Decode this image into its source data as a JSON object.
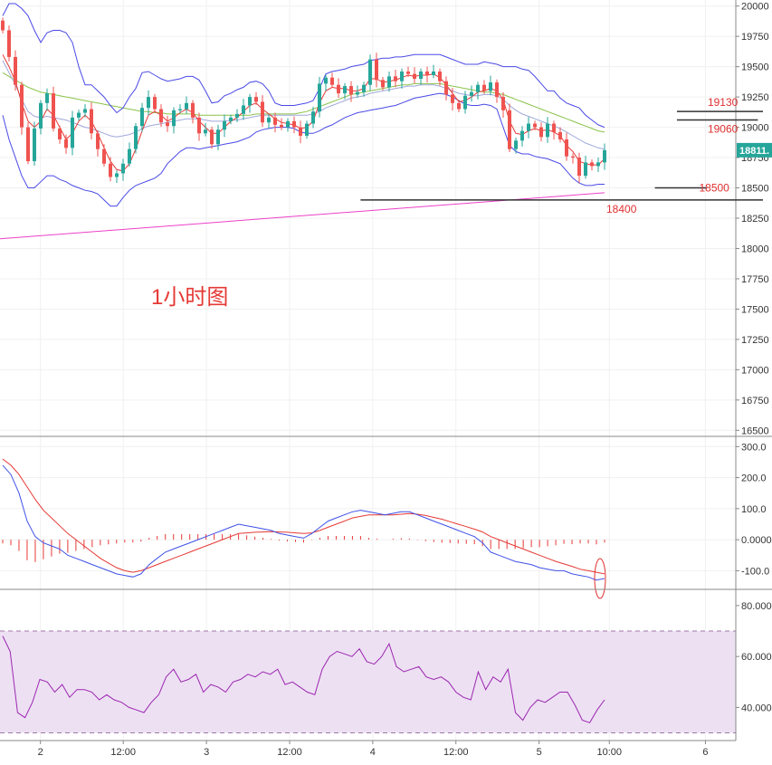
{
  "chart_data": {
    "type": "candlestick",
    "title": "1小时图",
    "price_panel": {
      "ylim": [
        16450,
        20050
      ],
      "yticks": [
        16500,
        16750,
        17000,
        17250,
        17500,
        17750,
        18000,
        18250,
        18500,
        18750,
        19000,
        19250,
        19500,
        19750,
        20000
      ],
      "ytick_labels": [
        "16500",
        "16750",
        "17000",
        "17250",
        "17500",
        "17750",
        "18000",
        "18250",
        "18500",
        "18750",
        "19000",
        "19250",
        "19500",
        "19750",
        "20000"
      ],
      "last_price_label": "18811.",
      "last_price": 18811,
      "levels": [
        {
          "label": "19130",
          "value": 19130,
          "x_from": 0.92,
          "x_to": 1.06
        },
        {
          "label": "19060",
          "value": 19060,
          "x_from": 0.92,
          "x_to": 1.03
        },
        {
          "label": "18500",
          "value": 18500,
          "x_from": 0.89,
          "x_to": 0.96
        },
        {
          "label": "18400",
          "value": 18400,
          "x_from": 0.49,
          "x_to": 1.1
        }
      ],
      "close": [
        19800,
        19580,
        19350,
        19000,
        18720,
        18990,
        19200,
        19280,
        18990,
        18900,
        18830,
        19080,
        19120,
        19150,
        18950,
        18820,
        18700,
        18590,
        18620,
        18700,
        18820,
        19010,
        19160,
        19250,
        19150,
        19040,
        19010,
        19140,
        19150,
        19200,
        19080,
        18950,
        18980,
        18860,
        18980,
        19050,
        19080,
        19110,
        19180,
        19250,
        19210,
        19040,
        19080,
        19020,
        19000,
        19050,
        19000,
        18930,
        19030,
        19130,
        19360,
        19410,
        19350,
        19280,
        19340,
        19270,
        19290,
        19350,
        19560,
        19390,
        19330,
        19420,
        19380,
        19460,
        19440,
        19400,
        19460,
        19430,
        19460,
        19380,
        19270,
        19200,
        19150,
        19260,
        19290,
        19350,
        19300,
        19370,
        19250,
        19140,
        18820,
        18890,
        18970,
        19030,
        19000,
        18920,
        19030,
        18960,
        18900,
        18760,
        18750,
        18600,
        18710,
        18680,
        18710,
        18811
      ],
      "ma_red": [
        19600,
        19500,
        19380,
        19200,
        19050,
        19000,
        19050,
        19150,
        19100,
        19000,
        18900,
        18950,
        19050,
        19100,
        19050,
        18950,
        18830,
        18720,
        18650,
        18640,
        18700,
        18820,
        18970,
        19100,
        19130,
        19100,
        19050,
        19080,
        19120,
        19150,
        19120,
        19050,
        19000,
        18950,
        18950,
        19000,
        19050,
        19080,
        19130,
        19180,
        19200,
        19150,
        19110,
        19070,
        19040,
        19030,
        19020,
        18990,
        19000,
        19050,
        19200,
        19300,
        19330,
        19320,
        19320,
        19300,
        19300,
        19320,
        19400,
        19400,
        19370,
        19380,
        19390,
        19410,
        19430,
        19420,
        19430,
        19430,
        19440,
        19410,
        19350,
        19280,
        19210,
        19220,
        19250,
        19290,
        19300,
        19320,
        19300,
        19230,
        19050,
        18950,
        18940,
        18970,
        18990,
        18970,
        18980,
        18960,
        18930,
        18850,
        18800,
        18720,
        18700,
        18690,
        18690,
        18740
      ],
      "bb_upper": [
        19920,
        20020,
        20020,
        19980,
        19920,
        19800,
        19700,
        19780,
        19800,
        19800,
        19780,
        19700,
        19500,
        19350,
        19350,
        19300,
        19250,
        19180,
        19120,
        19160,
        19250,
        19320,
        19450,
        19460,
        19430,
        19400,
        19380,
        19390,
        19400,
        19420,
        19420,
        19390,
        19300,
        19200,
        19210,
        19260,
        19280,
        19310,
        19330,
        19370,
        19380,
        19360,
        19300,
        19200,
        19180,
        19180,
        19180,
        19190,
        19200,
        19220,
        19320,
        19440,
        19460,
        19470,
        19480,
        19500,
        19510,
        19520,
        19550,
        19560,
        19570,
        19570,
        19580,
        19580,
        19590,
        19600,
        19600,
        19600,
        19600,
        19600,
        19580,
        19560,
        19540,
        19520,
        19520,
        19520,
        19540,
        19530,
        19520,
        19500,
        19500,
        19500,
        19480,
        19470,
        19420,
        19360,
        19300,
        19300,
        19240,
        19200,
        19180,
        19160,
        19100,
        19060,
        19020,
        19000
      ],
      "bb_lower": [
        19100,
        18900,
        18750,
        18600,
        18500,
        18500,
        18550,
        18600,
        18600,
        18570,
        18550,
        18520,
        18500,
        18480,
        18470,
        18450,
        18400,
        18350,
        18350,
        18420,
        18480,
        18520,
        18540,
        18560,
        18580,
        18620,
        18700,
        18750,
        18800,
        18830,
        18830,
        18820,
        18830,
        18840,
        18850,
        18860,
        18870,
        18880,
        18900,
        18920,
        18960,
        18980,
        18990,
        19000,
        19000,
        19000,
        18990,
        18960,
        18950,
        18950,
        18970,
        19000,
        19020,
        19050,
        19080,
        19100,
        19120,
        19130,
        19140,
        19150,
        19160,
        19170,
        19180,
        19200,
        19220,
        19240,
        19250,
        19260,
        19270,
        19280,
        19270,
        19250,
        19220,
        19190,
        19180,
        19180,
        19190,
        19180,
        19150,
        19000,
        18850,
        18800,
        18780,
        18780,
        18760,
        18750,
        18740,
        18720,
        18700,
        18640,
        18580,
        18540,
        18520,
        18520,
        18530,
        18530
      ],
      "bb_mid": [
        19550,
        19450,
        19350,
        19230,
        19130,
        19090,
        19080,
        19090,
        19080,
        19070,
        19060,
        19040,
        19020,
        19000,
        18990,
        18970,
        18950,
        18930,
        18920,
        18930,
        18940,
        18960,
        18990,
        19010,
        19020,
        19030,
        19040,
        19050,
        19060,
        19070,
        19070,
        19070,
        19060,
        19050,
        19050,
        19050,
        19060,
        19060,
        19070,
        19080,
        19090,
        19100,
        19100,
        19100,
        19100,
        19100,
        19100,
        19100,
        19100,
        19110,
        19130,
        19160,
        19180,
        19200,
        19220,
        19240,
        19250,
        19260,
        19280,
        19290,
        19300,
        19310,
        19320,
        19330,
        19340,
        19340,
        19350,
        19350,
        19350,
        19340,
        19320,
        19300,
        19280,
        19270,
        19260,
        19260,
        19270,
        19270,
        19260,
        19230,
        19180,
        19140,
        19110,
        19090,
        19070,
        19050,
        19030,
        19010,
        18990,
        18960,
        18930,
        18900,
        18870,
        18850,
        18830,
        18820
      ],
      "ma_green": [
        19450,
        19420,
        19390,
        19360,
        19330,
        19310,
        19290,
        19280,
        19270,
        19260,
        19250,
        19240,
        19230,
        19220,
        19210,
        19200,
        19190,
        19180,
        19170,
        19160,
        19150,
        19140,
        19130,
        19130,
        19120,
        19120,
        19110,
        19110,
        19110,
        19110,
        19110,
        19100,
        19100,
        19100,
        19100,
        19100,
        19100,
        19100,
        19100,
        19100,
        19110,
        19110,
        19110,
        19110,
        19110,
        19110,
        19110,
        19120,
        19130,
        19150,
        19170,
        19190,
        19210,
        19230,
        19250,
        19270,
        19280,
        19290,
        19300,
        19310,
        19320,
        19330,
        19340,
        19350,
        19350,
        19360,
        19360,
        19360,
        19360,
        19360,
        19350,
        19340,
        19330,
        19320,
        19310,
        19300,
        19290,
        19290,
        19280,
        19270,
        19250,
        19230,
        19210,
        19190,
        19170,
        19150,
        19130,
        19110,
        19090,
        19070,
        19050,
        19030,
        19010,
        18990,
        18970,
        18960
      ],
      "ma_long_pink": {
        "start": 18080,
        "end": 18460
      }
    },
    "macd_panel": {
      "ylim": [
        -160,
        330
      ],
      "yticks": [
        -100,
        0,
        100,
        200,
        300
      ],
      "ytick_labels": [
        "-100.0",
        "0.0000",
        "100.0",
        "200.0",
        "300.0"
      ],
      "dif": [
        240,
        210,
        150,
        60,
        10,
        -10,
        -20,
        -30,
        -50,
        -60,
        -70,
        -80,
        -90,
        -100,
        -110,
        -115,
        -120,
        -110,
        -80,
        -60,
        -40,
        -30,
        -20,
        -10,
        0,
        10,
        20,
        30,
        40,
        50,
        45,
        40,
        35,
        30,
        20,
        15,
        10,
        5,
        20,
        40,
        60,
        70,
        80,
        90,
        95,
        90,
        85,
        80,
        85,
        90,
        90,
        80,
        70,
        60,
        50,
        40,
        30,
        20,
        10,
        -10,
        -40,
        -50,
        -60,
        -70,
        -75,
        -80,
        -90,
        -95,
        -100,
        -100,
        -110,
        -115,
        -120,
        -130,
        -125
      ],
      "dea": [
        260,
        240,
        210,
        170,
        130,
        95,
        70,
        45,
        20,
        0,
        -20,
        -40,
        -60,
        -75,
        -90,
        -100,
        -105,
        -100,
        -90,
        -80,
        -70,
        -60,
        -50,
        -40,
        -30,
        -20,
        -10,
        0,
        10,
        20,
        22,
        24,
        25,
        26,
        25,
        24,
        22,
        20,
        22,
        30,
        40,
        50,
        60,
        70,
        75,
        80,
        80,
        80,
        80,
        82,
        84,
        82,
        78,
        72,
        66,
        58,
        50,
        42,
        34,
        25,
        10,
        0,
        -10,
        -20,
        -30,
        -40,
        -50,
        -60,
        -70,
        -78,
        -86,
        -95,
        -100,
        -105,
        -110
      ],
      "hist_note": "histogram bars are 2x(dif-dea)"
    },
    "rsi_panel": {
      "ylim": [
        27,
        86
      ],
      "yticks": [
        40,
        60,
        80
      ],
      "ytick_labels": [
        "40.000",
        "60.000",
        "80.000"
      ],
      "band": [
        30,
        70
      ],
      "values": [
        68,
        62,
        38,
        36,
        42,
        51,
        50,
        46,
        49,
        44,
        47,
        47,
        46,
        43,
        45,
        43,
        42,
        40,
        39,
        38,
        42,
        45,
        52,
        55,
        50,
        51,
        53,
        46,
        49,
        48,
        46,
        50,
        51,
        53,
        52,
        54,
        53,
        55,
        49,
        50,
        48,
        46,
        45,
        55,
        60,
        62,
        61,
        60,
        63,
        58,
        57,
        60,
        65,
        56,
        54,
        55,
        56,
        52,
        51,
        52,
        50,
        46,
        44,
        43,
        54,
        47,
        52,
        50,
        55,
        38,
        35,
        40,
        43,
        42,
        44,
        46,
        46,
        41,
        35,
        34,
        39,
        43
      ]
    },
    "x_axis": {
      "ticks": [
        {
          "label": "2",
          "pos": 0.055
        },
        {
          "label": "12:00",
          "pos": 0.1675
        },
        {
          "label": "3",
          "pos": 0.2806
        },
        {
          "label": "12:00",
          "pos": 0.3936
        },
        {
          "label": "4",
          "pos": 0.5066
        },
        {
          "label": "12:00",
          "pos": 0.6196
        },
        {
          "label": "5",
          "pos": 0.7327
        },
        {
          "label": "10:00",
          "pos": 0.8281
        },
        {
          "label": "6",
          "pos": 0.9587
        }
      ]
    },
    "colors": {
      "up": "#26a69a",
      "down": "#ef5350",
      "ma_red": "#e53935",
      "bb": "#4a4ae6",
      "ma_green": "#8bc34a",
      "bb_mid": "#9fa8da",
      "ma_long": "#ec40c8",
      "dif": "#3f51e6",
      "dea": "#e53935",
      "rsi": "#9c27b0",
      "rsi_band": "#ede0f3",
      "grid": "#f0f0f0",
      "axis_bg": "#ffffff",
      "price_tag": "#26a69a",
      "level_line": "#333333",
      "annotation": "#e03030"
    }
  }
}
